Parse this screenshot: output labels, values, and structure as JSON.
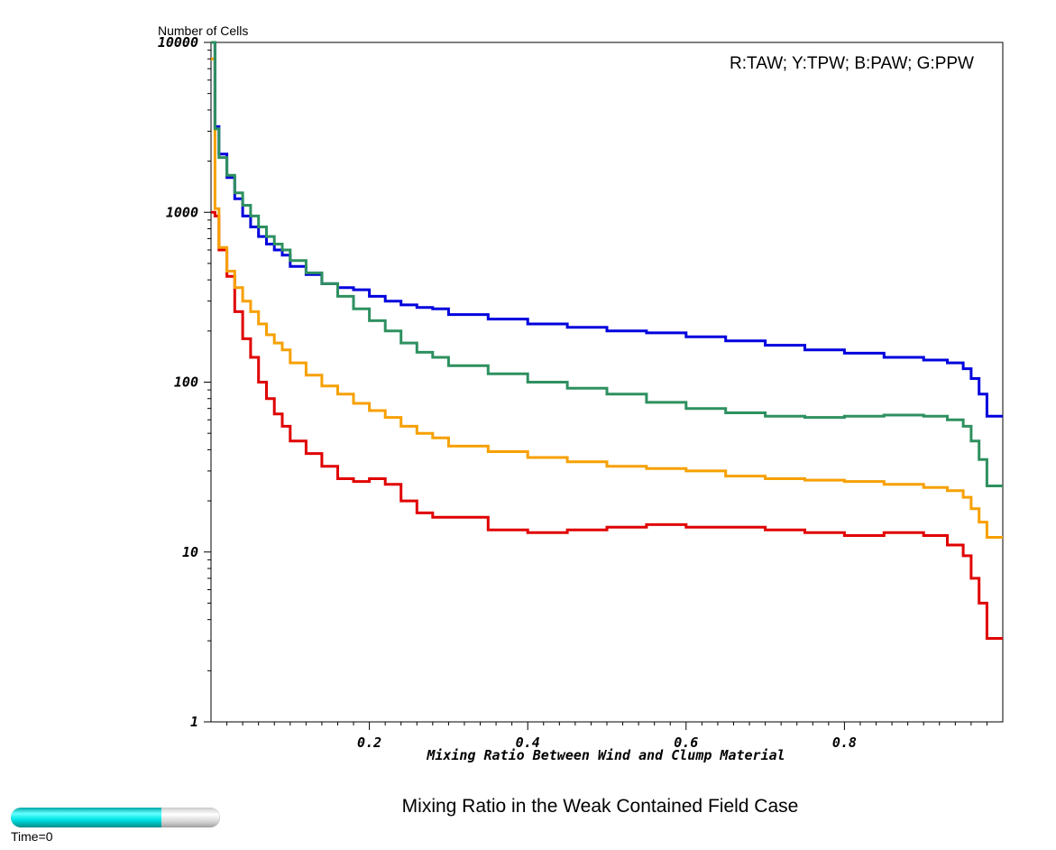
{
  "chart_data": {
    "type": "line",
    "step": true,
    "title": "Mixing Ratio in the Weak Contained Field Case",
    "xlabel": "Mixing Ratio Between Wind and Clump Material",
    "ylabel": "Number of Cells",
    "xlim": [
      0.0,
      1.0
    ],
    "ylim": [
      1,
      10000
    ],
    "yscale": "log",
    "x_ticks": [
      0.2,
      0.4,
      0.6,
      0.8
    ],
    "x_tick_labels": [
      "0.2",
      "0.4",
      "0.6",
      "0.8"
    ],
    "y_ticks": [
      1,
      10,
      100,
      1000,
      10000
    ],
    "y_tick_labels": [
      "1",
      "10",
      "100",
      "1000",
      "10000"
    ],
    "legend_text": "R:TAW; Y:TPW; B:PAW; G:PPW",
    "legend_placement": "top-right",
    "grid": false,
    "x": [
      0.005,
      0.01,
      0.02,
      0.03,
      0.04,
      0.05,
      0.06,
      0.07,
      0.08,
      0.09,
      0.1,
      0.12,
      0.14,
      0.16,
      0.18,
      0.2,
      0.22,
      0.24,
      0.26,
      0.28,
      0.3,
      0.35,
      0.4,
      0.45,
      0.5,
      0.55,
      0.6,
      0.65,
      0.7,
      0.75,
      0.8,
      0.85,
      0.9,
      0.93,
      0.95,
      0.96,
      0.97,
      0.98,
      0.99,
      1.0
    ],
    "series": [
      {
        "key": "red",
        "color": "#e00000",
        "values": [
          1000,
          950,
          600,
          420,
          260,
          180,
          140,
          100,
          80,
          65,
          55,
          45,
          38,
          32,
          27,
          26,
          27,
          25,
          20,
          17,
          16,
          16,
          13.5,
          13,
          13.5,
          14,
          14.5,
          14,
          14,
          13.5,
          13,
          12.5,
          13,
          12.5,
          11,
          9.5,
          7,
          5,
          3.1,
          3.1
        ]
      },
      {
        "key": "yellow",
        "color": "#f7a000",
        "values": [
          8000,
          1050,
          620,
          450,
          360,
          300,
          260,
          220,
          190,
          170,
          155,
          130,
          110,
          95,
          85,
          75,
          68,
          62,
          55,
          50,
          47,
          42,
          39,
          36,
          34,
          32,
          31,
          30,
          28,
          27,
          26.5,
          26,
          25,
          24,
          23,
          21,
          18,
          15,
          12.2,
          12.2
        ]
      },
      {
        "key": "blue",
        "color": "#0000dd",
        "values": [
          10000,
          3200,
          2200,
          1600,
          1200,
          950,
          820,
          720,
          650,
          600,
          560,
          480,
          430,
          380,
          360,
          350,
          320,
          300,
          285,
          275,
          270,
          250,
          235,
          220,
          210,
          200,
          195,
          185,
          175,
          165,
          155,
          148,
          140,
          135,
          130,
          120,
          105,
          85,
          63,
          63
        ]
      },
      {
        "key": "green",
        "color": "#2e9060",
        "values": [
          10000,
          3100,
          2100,
          1650,
          1300,
          1100,
          950,
          820,
          720,
          650,
          600,
          520,
          440,
          380,
          320,
          270,
          230,
          200,
          170,
          150,
          140,
          125,
          112,
          100,
          92,
          85,
          76,
          70,
          66,
          63,
          62,
          63,
          64,
          63,
          60,
          55,
          45,
          35,
          24.5,
          24.5
        ]
      }
    ]
  },
  "time_slider": {
    "label": "Time=0",
    "fraction": 0.72
  }
}
